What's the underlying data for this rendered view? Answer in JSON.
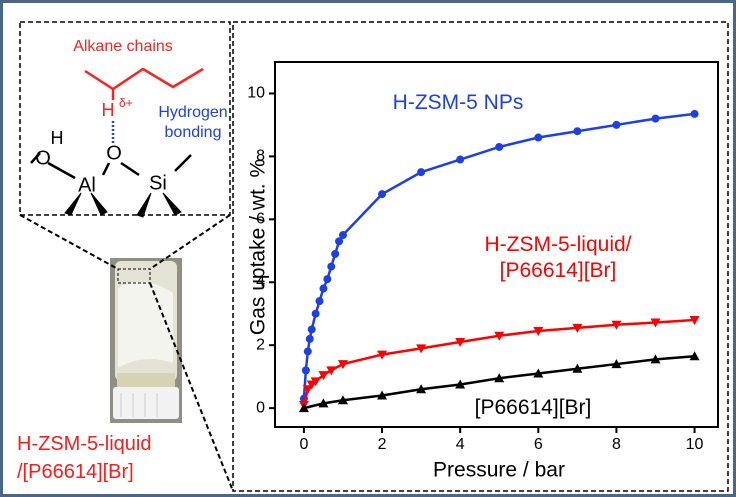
{
  "scheme": {
    "alkane_label": "Alkane chains",
    "h_atom": "H",
    "h_charge": "δ+",
    "hb_label": [
      "Hydrogen",
      "bonding"
    ],
    "o_bridge": "O",
    "al_atom": "Al",
    "si_atom": "Si",
    "o_left": "O",
    "h_left": "H"
  },
  "caption": [
    "H-ZSM-5-liquid",
    "/[P66614][Br]"
  ],
  "chart_data": {
    "type": "line",
    "x_label": "Pressure / bar",
    "y_label": "Gas uptake / wt. %",
    "xlim": [
      -0.74,
      10.6
    ],
    "ylim": [
      -0.6,
      11
    ],
    "xticks": [
      0,
      2,
      4,
      6,
      8,
      10
    ],
    "yticks": [
      0,
      2,
      4,
      6,
      8,
      10
    ],
    "series": [
      {
        "name": "H-ZSM-5 NPs",
        "color": "#1f3fe6",
        "marker": "circle",
        "x": [
          0,
          0.05,
          0.1,
          0.15,
          0.2,
          0.3,
          0.4,
          0.5,
          0.6,
          0.7,
          0.8,
          0.9,
          1,
          2,
          3,
          4,
          5,
          6,
          7,
          8,
          9,
          10
        ],
        "values": [
          0.3,
          1.2,
          1.8,
          2.2,
          2.5,
          3.0,
          3.4,
          3.8,
          4.1,
          4.5,
          4.9,
          5.3,
          5.5,
          6.8,
          7.5,
          7.9,
          8.3,
          8.6,
          8.8,
          9.0,
          9.2,
          9.35
        ]
      },
      {
        "name": "H-ZSM-5-liquid/\n[P66614][Br]",
        "color": "#ff0000",
        "marker": "triangle-down",
        "x": [
          0,
          0.1,
          0.2,
          0.3,
          0.5,
          0.7,
          1,
          2,
          3,
          4,
          5,
          6,
          7,
          8,
          9,
          10
        ],
        "values": [
          0.1,
          0.6,
          0.75,
          0.85,
          1.05,
          1.2,
          1.4,
          1.7,
          1.9,
          2.1,
          2.3,
          2.45,
          2.55,
          2.65,
          2.72,
          2.8
        ]
      },
      {
        "name": "[P66614][Br]",
        "color": "#000000",
        "marker": "triangle-up",
        "x": [
          0,
          0.5,
          1,
          2,
          3,
          4,
          5,
          6,
          7,
          8,
          9,
          10
        ],
        "values": [
          0,
          0.15,
          0.25,
          0.4,
          0.6,
          0.75,
          0.95,
          1.1,
          1.25,
          1.4,
          1.55,
          1.65
        ]
      }
    ]
  }
}
